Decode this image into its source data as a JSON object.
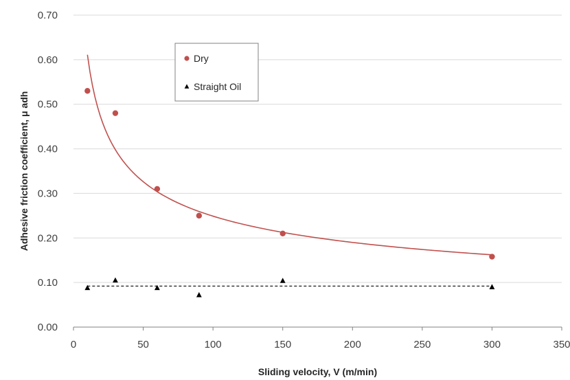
{
  "chart_data": {
    "type": "scatter",
    "title": "",
    "xlabel": "Sliding velocity, V (m/min)",
    "ylabel": "Adhesive friction coefficient, μ adh",
    "xlim": [
      0,
      350
    ],
    "ylim": [
      0,
      0.7
    ],
    "xticks": [
      0,
      50,
      100,
      150,
      200,
      250,
      300,
      350
    ],
    "yticks": [
      "0.00",
      "0.10",
      "0.20",
      "0.30",
      "0.40",
      "0.50",
      "0.60",
      "0.70"
    ],
    "grid": "horizontal",
    "legend_position": "top-center",
    "series": [
      {
        "name": "Dry",
        "marker": "circle",
        "color": "#c0504d",
        "points": [
          [
            10,
            0.53
          ],
          [
            30,
            0.48
          ],
          [
            60,
            0.31
          ],
          [
            90,
            0.25
          ],
          [
            150,
            0.21
          ],
          [
            300,
            0.158
          ]
        ],
        "trendline": {
          "type": "power",
          "a": 1.5,
          "b": -0.39,
          "x_range": [
            10,
            300
          ],
          "style": "solid"
        }
      },
      {
        "name": "Straight Oil",
        "marker": "triangle",
        "color": "#000000",
        "points": [
          [
            10,
            0.088
          ],
          [
            30,
            0.105
          ],
          [
            60,
            0.088
          ],
          [
            90,
            0.072
          ],
          [
            150,
            0.104
          ],
          [
            300,
            0.09
          ]
        ],
        "trendline": {
          "type": "constant",
          "value": 0.092,
          "x_range": [
            10,
            300
          ],
          "style": "dashed"
        }
      }
    ]
  }
}
